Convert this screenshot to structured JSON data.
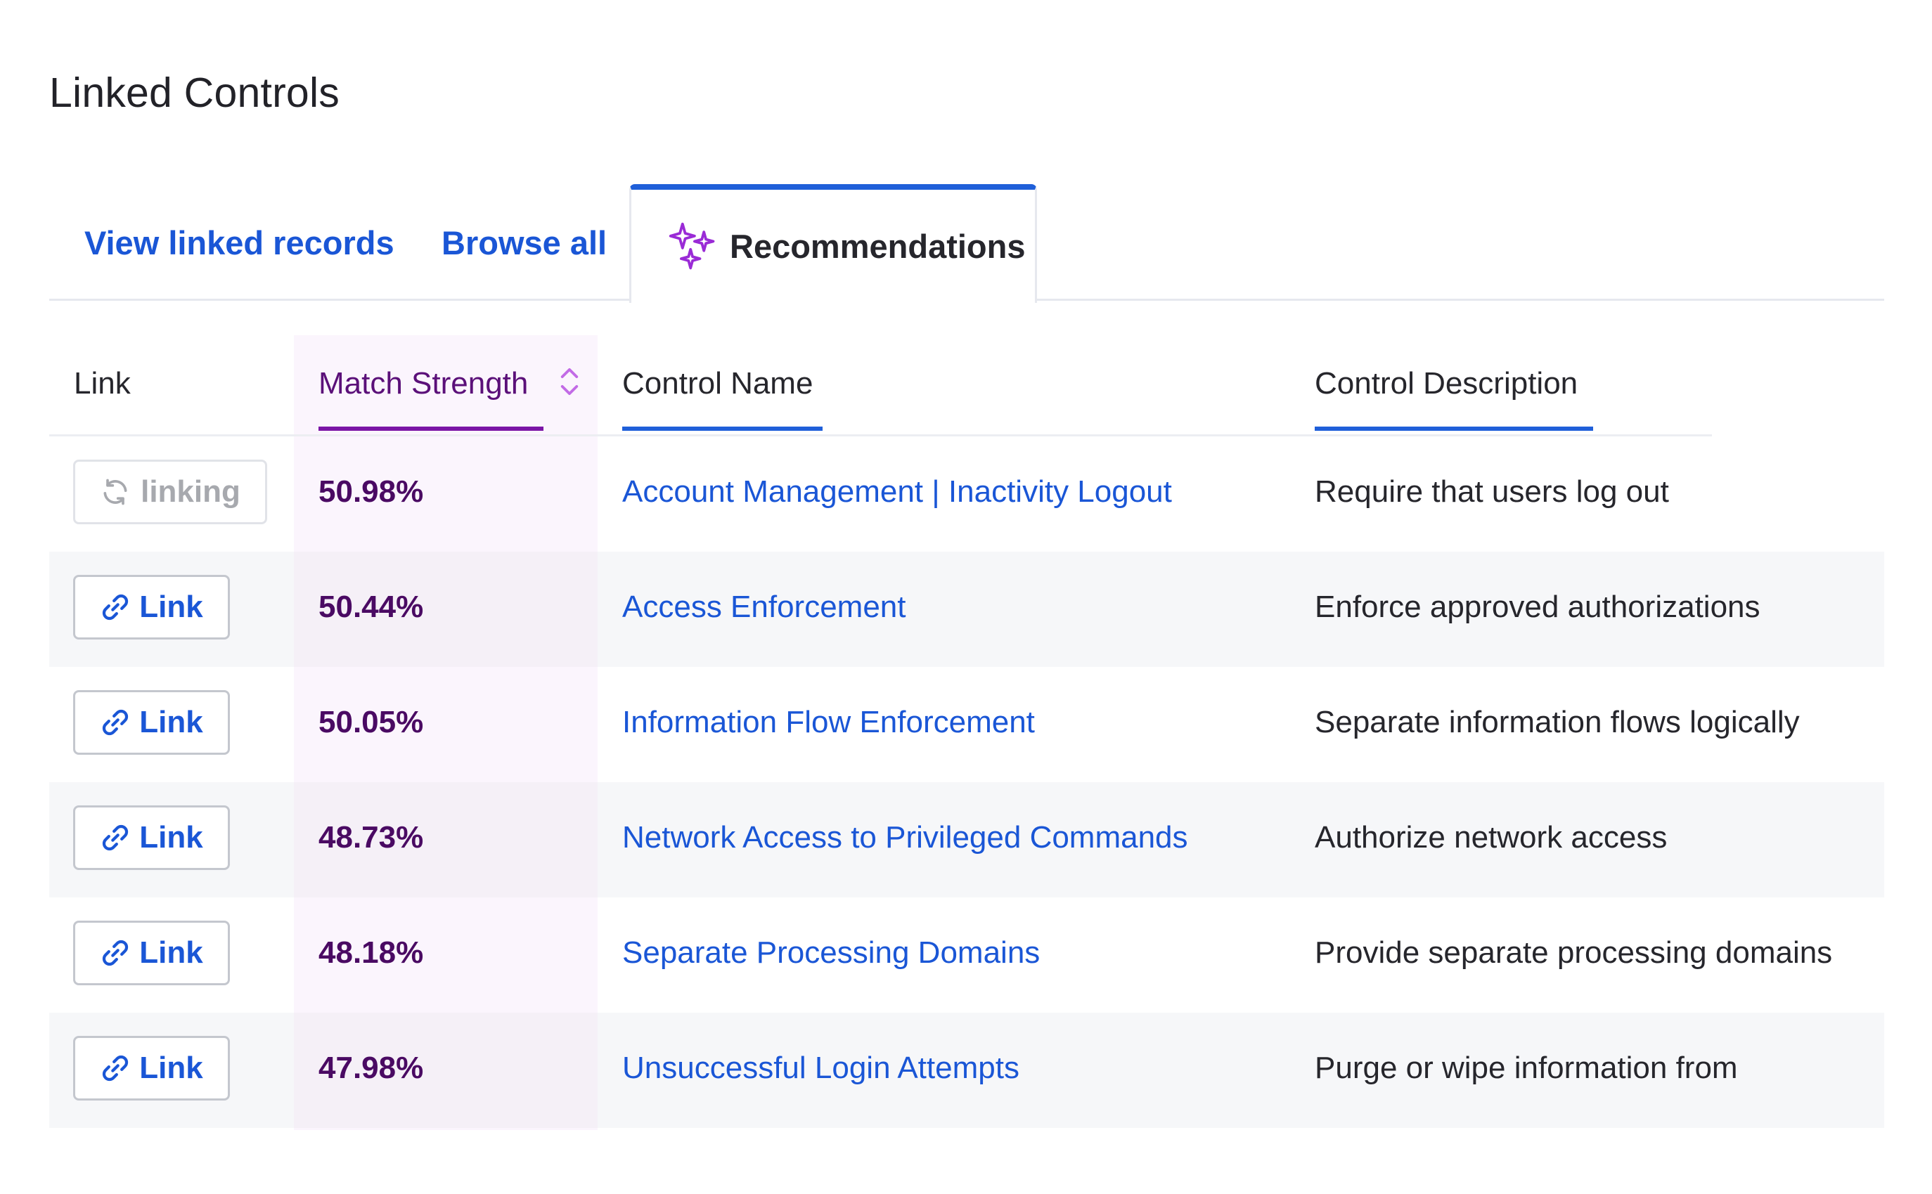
{
  "page": {
    "title": "Linked Controls"
  },
  "tabs": [
    {
      "label": "View linked records",
      "icon": null
    },
    {
      "label": "Browse all",
      "icon": null
    },
    {
      "label": "Recommendations",
      "icon": "sparkle-icon",
      "active": true
    }
  ],
  "table": {
    "headers": {
      "link": "Link",
      "match": "Match Strength",
      "name": "Control Name",
      "description": "Control Description"
    },
    "rows": [
      {
        "action": "linking",
        "action_icon": "refresh-icon",
        "match": "50.98%",
        "name": "Account Management | Inactivity Logout",
        "description": "Require that users log out"
      },
      {
        "action": "Link",
        "action_icon": "link-icon",
        "match": "50.44%",
        "name": "Access Enforcement",
        "description": "Enforce approved authorizations"
      },
      {
        "action": "Link",
        "action_icon": "link-icon",
        "match": "50.05%",
        "name": "Information Flow Enforcement",
        "description": "Separate information flows logically"
      },
      {
        "action": "Link",
        "action_icon": "link-icon",
        "match": "48.73%",
        "name": "Network Access to Privileged Commands",
        "description": "Authorize network access"
      },
      {
        "action": "Link",
        "action_icon": "link-icon",
        "match": "48.18%",
        "name": "Separate Processing Domains",
        "description": "Provide separate processing domains"
      },
      {
        "action": "Link",
        "action_icon": "link-icon",
        "match": "47.98%",
        "name": "Unsuccessful Login Attempts",
        "description": "Purge or wipe information from"
      }
    ]
  },
  "colors": {
    "accent_blue": "#1a56d6",
    "accent_purple": "#7b15a6",
    "match_text": "#4a0a63"
  }
}
